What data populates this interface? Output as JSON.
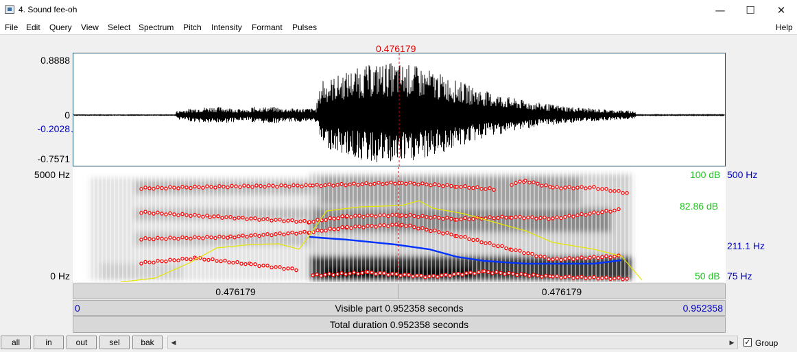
{
  "window": {
    "title": "4. Sound fee-oh",
    "minimize": "—",
    "maximize": "☐",
    "close": "✕"
  },
  "menu": {
    "items": [
      "File",
      "Edit",
      "Query",
      "View",
      "Select",
      "Spectrum",
      "Pitch",
      "Intensity",
      "Formant",
      "Pulses"
    ],
    "help": "Help"
  },
  "cursor_time": "0.476179",
  "waveform": {
    "top": "0.8888",
    "zero": "0",
    "cursor_value": "-0.2028",
    "bottom": "-0.7571"
  },
  "spectrogram": {
    "top_freq": "5000 Hz",
    "bottom_freq": "0 Hz",
    "pitch_top": "500 Hz",
    "pitch_mid": "211.1 Hz",
    "pitch_bottom": "75 Hz",
    "intensity_top": "100 dB",
    "intensity_mid": "82.86 dB",
    "intensity_bottom": "50 dB"
  },
  "time_bars": {
    "left_selection": "0.476179",
    "right_selection": "0.476179",
    "visible_start": "0",
    "visible_label": "Visible part 0.952358 seconds",
    "visible_end": "0.952358",
    "total_label": "Total duration 0.952358 seconds"
  },
  "buttons": {
    "all": "all",
    "in": "in",
    "out": "out",
    "sel": "sel",
    "bak": "bak"
  },
  "group": {
    "label": "Group",
    "checked": true
  },
  "colors": {
    "cursor": "#e00000",
    "pitch": "#0033ff",
    "intensity": "#ffff00",
    "formant": "#ff0000"
  }
}
